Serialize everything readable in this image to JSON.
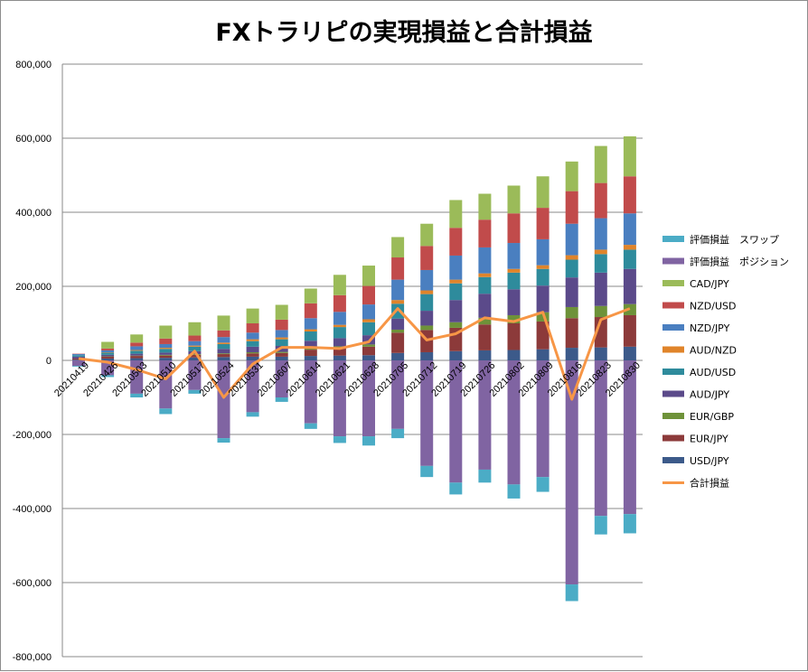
{
  "chart_data": {
    "type": "bar",
    "title": "FXトラリピの実現損益と合計損益",
    "xlabel": "",
    "ylabel": "",
    "ylim": [
      -800000,
      800000
    ],
    "yticks": [
      -800000,
      -600000,
      -400000,
      -200000,
      0,
      200000,
      400000,
      600000,
      800000
    ],
    "ytick_labels": [
      "-800,000",
      "-600,000",
      "-400,000",
      "-200,000",
      "0",
      "200,000",
      "400,000",
      "600,000",
      "800,000"
    ],
    "grid": true,
    "legend_position": "right",
    "categories": [
      "20210419",
      "20210426",
      "20210503",
      "20210510",
      "20210517",
      "20210524",
      "20210531",
      "20210607",
      "20210614",
      "20210621",
      "20210628",
      "20210705",
      "20210712",
      "20210719",
      "20210726",
      "20210802",
      "20210809",
      "20210816",
      "20210823",
      "20210830"
    ],
    "tick_labels_every": 1,
    "series": [
      {
        "name": "USD/JPY",
        "color": "#3c5a8a",
        "kind": "bar",
        "values": [
          2000,
          5000,
          6000,
          7000,
          8000,
          9000,
          10000,
          10000,
          12000,
          13000,
          14000,
          20000,
          22000,
          25000,
          27000,
          28000,
          30000,
          34000,
          35000,
          37000
        ]
      },
      {
        "name": "EUR/JPY",
        "color": "#8c3a3a",
        "kind": "bar",
        "values": [
          3000,
          5000,
          6000,
          6000,
          7000,
          8000,
          9000,
          10000,
          17000,
          20000,
          23000,
          55000,
          60000,
          63000,
          70000,
          72000,
          75000,
          80000,
          82000,
          85000
        ]
      },
      {
        "name": "EUR/GBP",
        "color": "#6e9239",
        "kind": "bar",
        "values": [
          0,
          1000,
          1000,
          2000,
          2000,
          2000,
          3000,
          3000,
          4000,
          5000,
          6000,
          8000,
          12000,
          15000,
          18000,
          22000,
          25000,
          30000,
          30000,
          30000
        ]
      },
      {
        "name": "AUD/JPY",
        "color": "#5b4a8a",
        "kind": "bar",
        "values": [
          5000,
          4000,
          5000,
          6000,
          8000,
          12000,
          15000,
          16000,
          20000,
          22000,
          25000,
          30000,
          40000,
          60000,
          65000,
          70000,
          72000,
          80000,
          90000,
          95000
        ]
      },
      {
        "name": "AUD/USD",
        "color": "#2e8b9c",
        "kind": "bar",
        "values": [
          4000,
          6000,
          8000,
          10000,
          12000,
          13000,
          15000,
          18000,
          25000,
          30000,
          35000,
          40000,
          45000,
          45000,
          45000,
          45000,
          45000,
          48000,
          50000,
          52000
        ]
      },
      {
        "name": "AUD/NZD",
        "color": "#e0842a",
        "kind": "bar",
        "values": [
          0,
          1000,
          2000,
          3000,
          3000,
          4000,
          5000,
          5000,
          6000,
          6000,
          8000,
          10000,
          10000,
          10000,
          10000,
          10000,
          10000,
          12000,
          12000,
          13000
        ]
      },
      {
        "name": "NZD/JPY",
        "color": "#4a7fc0",
        "kind": "bar",
        "values": [
          3000,
          5000,
          10000,
          10000,
          12000,
          15000,
          18000,
          20000,
          30000,
          35000,
          40000,
          55000,
          55000,
          65000,
          70000,
          70000,
          70000,
          85000,
          85000,
          85000
        ]
      },
      {
        "name": "NZD/USD",
        "color": "#c14b4b",
        "kind": "bar",
        "values": [
          1000,
          5000,
          10000,
          15000,
          15000,
          18000,
          25000,
          28000,
          40000,
          45000,
          50000,
          60000,
          65000,
          75000,
          75000,
          80000,
          85000,
          88000,
          95000,
          100000
        ]
      },
      {
        "name": "CAD/JPY",
        "color": "#9bbb59",
        "kind": "bar",
        "values": [
          0,
          18000,
          22000,
          35000,
          36000,
          40000,
          40000,
          40000,
          40000,
          55000,
          55000,
          55000,
          60000,
          75000,
          70000,
          75000,
          85000,
          80000,
          100000,
          108000
        ]
      },
      {
        "name": "評価損益　ポジション",
        "color": "#8064a2",
        "kind": "bar",
        "values": [
          -15000,
          -40000,
          -90000,
          -130000,
          -80000,
          -210000,
          -140000,
          -100000,
          -170000,
          -205000,
          -205000,
          -185000,
          -285000,
          -330000,
          -295000,
          -335000,
          -315000,
          -605000,
          -420000,
          -415000
        ]
      },
      {
        "name": "評価損益　スワップ",
        "color": "#4bacc6",
        "kind": "bar",
        "values": [
          -2000,
          -5000,
          -10000,
          -15000,
          -10000,
          -12000,
          -12000,
          -12000,
          -15000,
          -18000,
          -25000,
          -25000,
          -30000,
          -32000,
          -35000,
          -38000,
          -40000,
          -45000,
          -50000,
          -52000
        ]
      },
      {
        "name": "合計損益",
        "color": "#f79646",
        "kind": "line",
        "values": [
          5000,
          -5000,
          -25000,
          -50000,
          25000,
          -100000,
          -10000,
          35000,
          35000,
          32000,
          50000,
          140000,
          55000,
          72000,
          115000,
          105000,
          130000,
          -105000,
          110000,
          140000
        ]
      }
    ],
    "legend_order": [
      "評価損益　スワップ",
      "評価損益　ポジション",
      "CAD/JPY",
      "NZD/USD",
      "NZD/JPY",
      "AUD/NZD",
      "AUD/USD",
      "AUD/JPY",
      "EUR/GBP",
      "EUR/JPY",
      "USD/JPY",
      "合計損益"
    ]
  }
}
